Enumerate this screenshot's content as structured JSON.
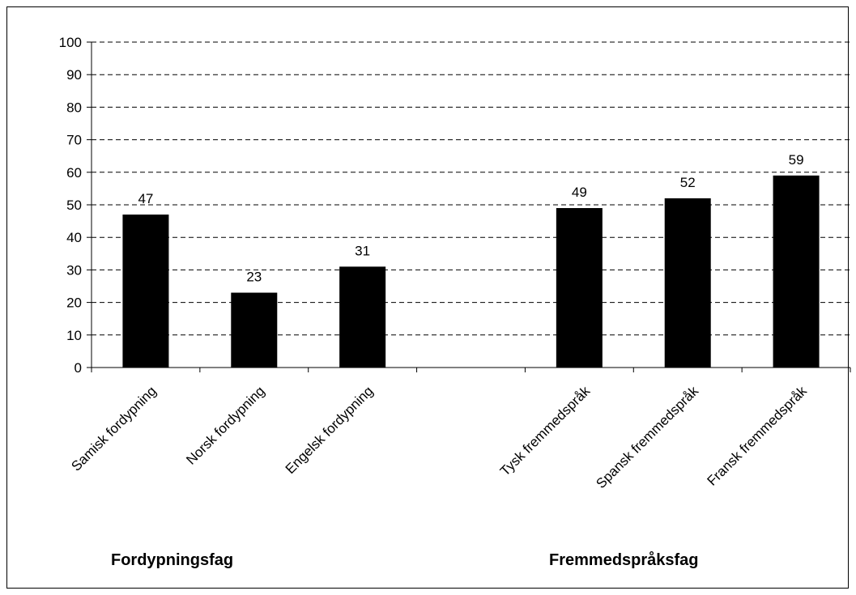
{
  "chart_data": {
    "type": "bar",
    "categories": [
      "Samisk fordypning",
      "Norsk fordypning",
      "Engelsk fordypning",
      "",
      "Tysk fremmedspråk",
      "Spansk fremmedspråk",
      "Fransk fremmedspråk"
    ],
    "values": [
      47,
      23,
      31,
      null,
      49,
      52,
      59
    ],
    "data_labels": [
      "47",
      "23",
      "31",
      "",
      "49",
      "52",
      "59"
    ],
    "ylim": [
      0,
      100
    ],
    "yticks": [
      0,
      10,
      20,
      30,
      40,
      50,
      60,
      70,
      80,
      90,
      100
    ],
    "grid": "horizontal dashed",
    "bar_color": "#000000",
    "group_labels": [
      "Fordypningsfag",
      "Fremmedspråksfag"
    ],
    "title": "",
    "xlabel": "",
    "ylabel": ""
  }
}
